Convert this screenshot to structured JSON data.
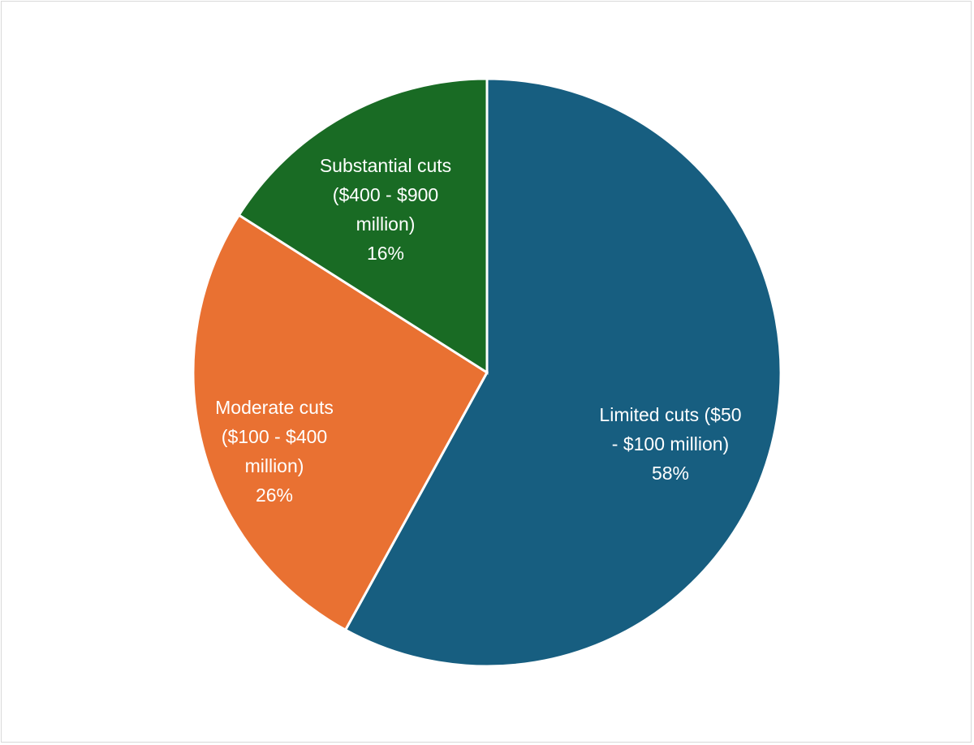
{
  "chart_data": {
    "type": "pie",
    "title": "",
    "start_angle_deg": 0,
    "direction": "clockwise",
    "slices": [
      {
        "name": "Limited cuts ($50 - $100 million)",
        "value": 58,
        "pct_label": "58%",
        "label_lines": [
          "Limited cuts ($50",
          "- $100 million)"
        ],
        "color": "#175E80"
      },
      {
        "name": "Moderate cuts ($100 - $400 million)",
        "value": 26,
        "pct_label": "26%",
        "label_lines": [
          "Moderate cuts",
          "($100 - $400",
          "million)"
        ],
        "color": "#E97132"
      },
      {
        "name": "Substantial cuts ($400 - $900 million)",
        "value": 16,
        "pct_label": "16%",
        "label_lines": [
          "Substantial cuts",
          "($400 - $900",
          "million)"
        ],
        "color": "#196B24"
      }
    ],
    "legend": "none",
    "slice_border_color": "#ffffff"
  }
}
